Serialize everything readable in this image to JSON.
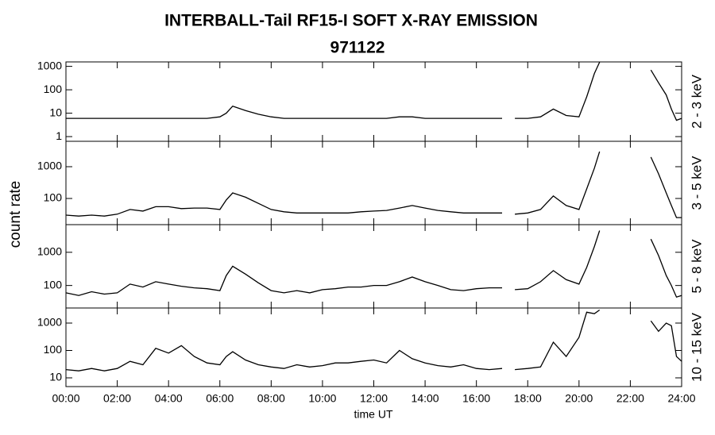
{
  "title": "INTERBALL-Tail RF15-I SOFT X-RAY EMISSION",
  "subtitle": "971122",
  "y_label": "count rate",
  "x_label": "time UT",
  "chart_data": [
    {
      "type": "line",
      "log_y": true,
      "xlim": [
        0,
        24
      ],
      "ylim": [
        0.63,
        1550
      ],
      "yticks": [
        1,
        10,
        100,
        1000
      ],
      "x": [
        0,
        0.5,
        1,
        1.5,
        2,
        2.5,
        3,
        3.5,
        4,
        4.5,
        5,
        5.5,
        6,
        6.25,
        6.5,
        7,
        7.5,
        8,
        8.5,
        9,
        9.5,
        10,
        10.5,
        11,
        11.5,
        12,
        12.5,
        13,
        13.5,
        14,
        14.5,
        15,
        15.5,
        16,
        16.5,
        17,
        17.2,
        17.5,
        18,
        18.5,
        19,
        19.5,
        20,
        20.3,
        20.6,
        20.8,
        21.5,
        22.8,
        23.1,
        23.4,
        23.6,
        23.8,
        24
      ],
      "series": [
        {
          "name": "2 - 3 keV",
          "color": "#000000",
          "values": [
            6,
            6,
            6,
            6,
            6,
            6,
            6,
            6,
            6,
            6,
            6,
            6,
            7,
            10,
            20,
            13,
            9,
            7,
            6,
            6,
            6,
            6,
            6,
            6,
            6,
            6,
            6,
            7,
            7,
            6,
            6,
            6,
            6,
            6,
            6,
            6,
            null,
            6,
            6,
            7,
            15,
            8,
            7,
            50,
            500,
            1500,
            null,
            700,
            200,
            60,
            15,
            5,
            6
          ]
        }
      ]
    },
    {
      "type": "line",
      "log_y": true,
      "xlim": [
        0,
        24
      ],
      "ylim": [
        15,
        6300
      ],
      "yticks": [
        100,
        1000
      ],
      "x": [
        0,
        0.5,
        1,
        1.5,
        2,
        2.5,
        3,
        3.5,
        4,
        4.5,
        5,
        5.5,
        6,
        6.25,
        6.5,
        7,
        7.5,
        8,
        8.5,
        9,
        9.5,
        10,
        10.5,
        11,
        11.5,
        12,
        12.5,
        13,
        13.5,
        14,
        14.5,
        15,
        15.5,
        16,
        16.5,
        17,
        17.2,
        17.5,
        18,
        18.5,
        19,
        19.5,
        20,
        20.3,
        20.6,
        20.8,
        21.5,
        22.8,
        23.1,
        23.4,
        23.6,
        23.8,
        24
      ],
      "series": [
        {
          "name": "3 - 5 keV",
          "color": "#000000",
          "values": [
            30,
            28,
            30,
            28,
            32,
            45,
            40,
            55,
            55,
            48,
            50,
            50,
            45,
            90,
            150,
            110,
            70,
            45,
            38,
            35,
            35,
            35,
            35,
            35,
            38,
            40,
            42,
            50,
            60,
            50,
            42,
            38,
            35,
            35,
            35,
            35,
            null,
            32,
            35,
            45,
            120,
            60,
            45,
            200,
            900,
            3000,
            null,
            2000,
            600,
            150,
            60,
            25,
            25
          ]
        }
      ]
    },
    {
      "type": "line",
      "log_y": true,
      "xlim": [
        0,
        24
      ],
      "ylim": [
        21,
        6800
      ],
      "yticks": [
        100,
        1000
      ],
      "x": [
        0,
        0.5,
        1,
        1.5,
        2,
        2.5,
        3,
        3.5,
        4,
        4.5,
        5,
        5.5,
        6,
        6.25,
        6.5,
        7,
        7.5,
        8,
        8.5,
        9,
        9.5,
        10,
        10.5,
        11,
        11.5,
        12,
        12.5,
        13,
        13.5,
        14,
        14.5,
        15,
        15.5,
        16,
        16.5,
        17,
        17.2,
        17.5,
        18,
        18.5,
        19,
        19.5,
        20,
        20.3,
        20.6,
        20.8,
        21.5,
        22.8,
        23.1,
        23.4,
        23.6,
        23.8,
        24
      ],
      "series": [
        {
          "name": "5 - 8 keV",
          "color": "#000000",
          "values": [
            60,
            50,
            65,
            55,
            60,
            110,
            90,
            130,
            110,
            95,
            85,
            80,
            70,
            200,
            380,
            220,
            120,
            70,
            60,
            70,
            60,
            75,
            80,
            90,
            90,
            100,
            100,
            130,
            180,
            130,
            100,
            75,
            70,
            80,
            85,
            85,
            null,
            75,
            80,
            130,
            280,
            150,
            110,
            350,
            1500,
            4500,
            null,
            2500,
            800,
            200,
            100,
            45,
            50
          ]
        }
      ]
    },
    {
      "type": "line",
      "log_y": true,
      "xlim": [
        0,
        24
      ],
      "ylim": [
        4.8,
        3550
      ],
      "yticks": [
        10,
        100,
        1000
      ],
      "xticks": [
        {
          "value": 0,
          "label": "00:00"
        },
        {
          "value": 2,
          "label": "02:00"
        },
        {
          "value": 4,
          "label": "04:00"
        },
        {
          "value": 6,
          "label": "06:00"
        },
        {
          "value": 8,
          "label": "08:00"
        },
        {
          "value": 10,
          "label": "10:00"
        },
        {
          "value": 12,
          "label": "12:00"
        },
        {
          "value": 14,
          "label": "14:00"
        },
        {
          "value": 16,
          "label": "16:00"
        },
        {
          "value": 18,
          "label": "18:00"
        },
        {
          "value": 20,
          "label": "20:00"
        },
        {
          "value": 22,
          "label": "22:00"
        },
        {
          "value": 24,
          "label": "24:00"
        }
      ],
      "x": [
        0,
        0.5,
        1,
        1.5,
        2,
        2.5,
        3,
        3.5,
        4,
        4.5,
        5,
        5.5,
        6,
        6.25,
        6.5,
        7,
        7.5,
        8,
        8.5,
        9,
        9.5,
        10,
        10.5,
        11,
        11.5,
        12,
        12.5,
        13,
        13.5,
        14,
        14.5,
        15,
        15.5,
        16,
        16.5,
        17,
        17.2,
        17.5,
        18,
        18.5,
        19,
        19.5,
        20,
        20.3,
        20.6,
        20.8,
        21.5,
        22.8,
        23.1,
        23.4,
        23.6,
        23.8,
        24
      ],
      "series": [
        {
          "name": "10 - 15 keV",
          "color": "#000000",
          "values": [
            20,
            18,
            22,
            18,
            22,
            40,
            30,
            120,
            80,
            150,
            60,
            35,
            30,
            60,
            90,
            45,
            30,
            25,
            22,
            30,
            25,
            28,
            35,
            35,
            40,
            45,
            35,
            100,
            50,
            35,
            28,
            25,
            30,
            22,
            20,
            22,
            null,
            20,
            22,
            25,
            200,
            60,
            300,
            2500,
            2200,
            3000,
            null,
            1200,
            500,
            1000,
            800,
            60,
            40
          ]
        }
      ]
    }
  ]
}
